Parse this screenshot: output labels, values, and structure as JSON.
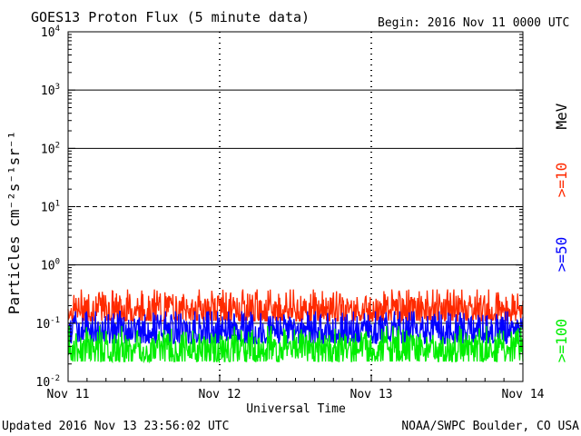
{
  "header": {
    "title": "GOES13 Proton Flux (5 minute data)",
    "begin": "Begin: 2016 Nov 11 0000 UTC"
  },
  "footer": {
    "updated": "Updated 2016 Nov 13 23:56:02 UTC",
    "credit": "NOAA/SWPC Boulder, CO USA"
  },
  "chart_data": {
    "type": "line",
    "title": "GOES13 Proton Flux (5 minute data)",
    "xlabel": "Universal Time",
    "ylabel": "Particles cm⁻²s⁻¹sr⁻¹",
    "yscale": "log",
    "ylim": [
      0.01,
      10000
    ],
    "y_ticks": [
      {
        "value": 0.01,
        "base": "10",
        "exp": "-2"
      },
      {
        "value": 0.1,
        "base": "10",
        "exp": "-1"
      },
      {
        "value": 1,
        "base": "10",
        "exp": "0"
      },
      {
        "value": 10,
        "base": "10",
        "exp": "1"
      },
      {
        "value": 100,
        "base": "10",
        "exp": "2"
      },
      {
        "value": 1000,
        "base": "10",
        "exp": "3"
      },
      {
        "value": 10000,
        "base": "10",
        "exp": "4"
      }
    ],
    "x_range": [
      "2016-11-11T00:00",
      "2016-11-14T00:00"
    ],
    "x_ticks": [
      "Nov 11",
      "Nov 12",
      "Nov 13",
      "Nov 14"
    ],
    "x_day_count": 3,
    "threshold_lines": [
      {
        "value": 10,
        "style": "dashed"
      },
      {
        "value": 1,
        "style": "solid"
      },
      {
        "value": 100,
        "style": "solid"
      },
      {
        "value": 1000,
        "style": "solid"
      },
      {
        "value": 0.1,
        "style": "solid"
      }
    ],
    "legend_units": "MeV",
    "legend_placement": "right, vertical",
    "series": [
      {
        "name": ">=10",
        "color": "#ff2a00",
        "mean": 0.17,
        "min": 0.11,
        "max": 0.38
      },
      {
        "name": ">=50",
        "color": "#0000ff",
        "mean": 0.075,
        "min": 0.045,
        "max": 0.16
      },
      {
        "name": ">=100",
        "color": "#00ee00",
        "mean": 0.035,
        "min": 0.022,
        "max": 0.09
      }
    ]
  }
}
